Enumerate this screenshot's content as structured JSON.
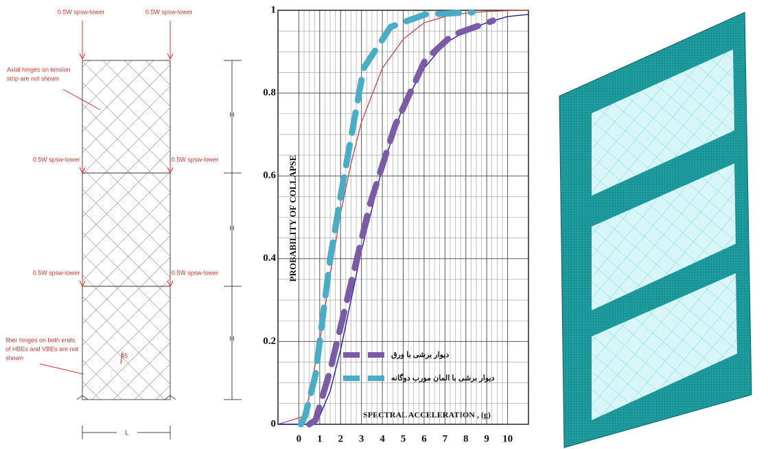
{
  "diagram": {
    "loads": [
      "0.5W spsw-lower",
      "0.5W spsw-lower",
      "0.5W spsw-lower",
      "0.5W spsw-lower",
      "0.5W spsw-lower",
      "0.5W spsw-lower"
    ],
    "notes": [
      [
        "Axial hinges on tension",
        "strip are not shown"
      ],
      [
        "fiber hinges on both ends",
        "of HBEs and VBEs are not",
        "shown"
      ]
    ],
    "dims": [
      "H",
      "H",
      "H",
      "L",
      "45"
    ]
  },
  "chart_data": {
    "type": "line",
    "x_label": "SPECTRAL ACCELERATION , (g)",
    "y_label": "PROBABILITY OF COLLAPSE",
    "xlim": [
      -1,
      11
    ],
    "ylim": [
      0,
      1
    ],
    "xticks": [
      0,
      1,
      2,
      3,
      4,
      5,
      6,
      7,
      8,
      9,
      10
    ],
    "yticks": [
      0,
      0.2,
      0.4,
      0.6,
      0.8,
      1
    ],
    "grid": true,
    "series": [
      {
        "color": "#c0504d",
        "style": "thin",
        "x": [
          -1,
          0.3,
          1,
          1.5,
          2,
          2.5,
          3,
          4,
          5,
          6,
          7,
          8,
          9,
          10,
          11
        ],
        "values": [
          0,
          0.02,
          0.2,
          0.36,
          0.51,
          0.63,
          0.73,
          0.86,
          0.93,
          0.97,
          0.985,
          0.993,
          0.997,
          0.999,
          1
        ]
      },
      {
        "color": "#1f1f9a",
        "style": "thin",
        "x": [
          -1,
          0.5,
          1,
          1.5,
          2,
          2.5,
          3,
          3.5,
          4,
          5,
          6,
          7,
          8,
          9,
          10,
          11
        ],
        "values": [
          0,
          0,
          0.02,
          0.08,
          0.18,
          0.3,
          0.42,
          0.52,
          0.62,
          0.77,
          0.86,
          0.92,
          0.95,
          0.97,
          0.985,
          0.99
        ]
      },
      {
        "name": "دیوار برشی با ورق",
        "color": "#7b5aa6",
        "style": "dash",
        "x": [
          0.5,
          0.8,
          1.5,
          2.45,
          3.4,
          4.6,
          6.05,
          7.35,
          9.3
        ],
        "values": [
          0,
          0.01,
          0.13,
          0.33,
          0.53,
          0.72,
          0.88,
          0.94,
          0.975
        ]
      },
      {
        "name": "دیوار برشی با المان مورب دوگانه",
        "color": "#4bacc6",
        "style": "dash",
        "x": [
          0.1,
          0.3,
          0.8,
          1.5,
          2.1,
          3.1,
          4.4,
          6.05,
          8.3
        ],
        "values": [
          0,
          0.02,
          0.12,
          0.4,
          0.58,
          0.86,
          0.96,
          0.99,
          0.995
        ]
      }
    ]
  }
}
